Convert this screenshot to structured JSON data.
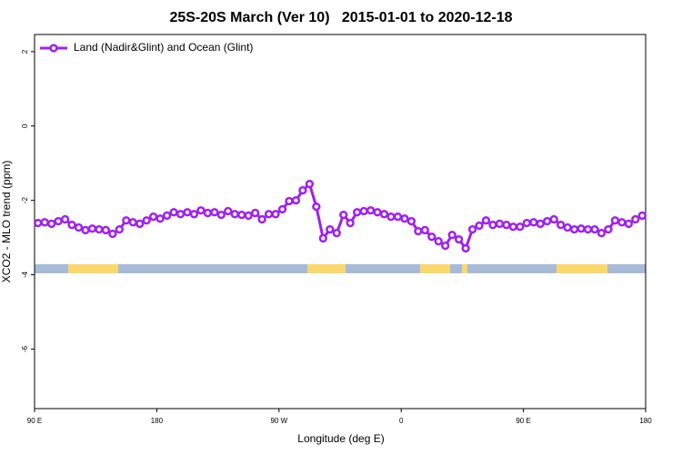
{
  "chart_data": {
    "type": "line",
    "title": "25S-20S March (Ver 10)   2015-01-01 to 2020-12-18",
    "x_label": "Longitude (deg E)",
    "y_label": "XCO2 - MLO trend (ppm)",
    "legend_position": "top-left",
    "xlim": [
      90,
      540
    ],
    "ylim": [
      -7.6,
      2.46
    ],
    "xticks": [
      {
        "value": 90,
        "label": "90 E"
      },
      180,
      {
        "value": 270,
        "label": "90 W"
      },
      {
        "value": 360,
        "label": "0"
      },
      {
        "value": 450,
        "label": "90 E"
      },
      {
        "value": 540,
        "label": "180"
      }
    ],
    "yticks": [
      2,
      0,
      -2,
      -4,
      -6
    ],
    "x": [
      92.5,
      97.5,
      102.5,
      107.5,
      112.5,
      117.5,
      122.5,
      127.5,
      132.5,
      137.5,
      142.5,
      147.5,
      152.5,
      157.5,
      162.5,
      167.5,
      172.5,
      177.5,
      182.5,
      187.5,
      192.5,
      197.5,
      202.5,
      207.5,
      212.5,
      217.5,
      222.5,
      227.5,
      232.5,
      237.5,
      242.5,
      247.5,
      252.5,
      257.5,
      262.5,
      267.5,
      272.5,
      277.5,
      282.5,
      287.5,
      292.5,
      297.5,
      302.5,
      307.5,
      312.5,
      317.5,
      322.5,
      327.5,
      332.5,
      337.5,
      342.5,
      347.5,
      352.5,
      357.5,
      362.5,
      367.5,
      372.5,
      377.5,
      382.5,
      387.5,
      392.5,
      397.5,
      402.5,
      407.5,
      412.5,
      417.5,
      422.5,
      427.5,
      432.5,
      437.5,
      442.5,
      447.5,
      452.5,
      457.5,
      462.5,
      467.5,
      472.5,
      477.5,
      482.5,
      487.5,
      492.5,
      497.5,
      502.5,
      507.5,
      512.5,
      517.5,
      522.5,
      527.5,
      532.5,
      537.5
    ],
    "series": [
      {
        "name": "Land (Nadir&Glint) and Ocean (Glint)",
        "color": "#a020f0",
        "values": [
          -2.61,
          -2.59,
          -2.63,
          -2.56,
          -2.51,
          -2.66,
          -2.73,
          -2.8,
          -2.76,
          -2.78,
          -2.8,
          -2.9,
          -2.78,
          -2.54,
          -2.59,
          -2.63,
          -2.54,
          -2.44,
          -2.49,
          -2.41,
          -2.32,
          -2.37,
          -2.32,
          -2.37,
          -2.27,
          -2.34,
          -2.32,
          -2.39,
          -2.29,
          -2.37,
          -2.39,
          -2.41,
          -2.34,
          -2.51,
          -2.37,
          -2.37,
          -2.24,
          -2.02,
          -2.0,
          -1.73,
          -1.56,
          -2.17,
          -3.02,
          -2.78,
          -2.88,
          -2.39,
          -2.61,
          -2.32,
          -2.29,
          -2.27,
          -2.32,
          -2.37,
          -2.44,
          -2.44,
          -2.49,
          -2.56,
          -2.83,
          -2.8,
          -2.98,
          -3.1,
          -3.22,
          -2.93,
          -3.05,
          -3.29,
          -2.78,
          -2.68,
          -2.54,
          -2.66,
          -2.63,
          -2.66,
          -2.71,
          -2.71,
          -2.61,
          -2.59,
          -2.63,
          -2.56,
          -2.51,
          -2.66,
          -2.73,
          -2.78,
          -2.76,
          -2.78,
          -2.78,
          -2.88,
          -2.78,
          -2.54,
          -2.59,
          -2.63,
          -2.51,
          -2.41
        ]
      }
    ]
  }
}
